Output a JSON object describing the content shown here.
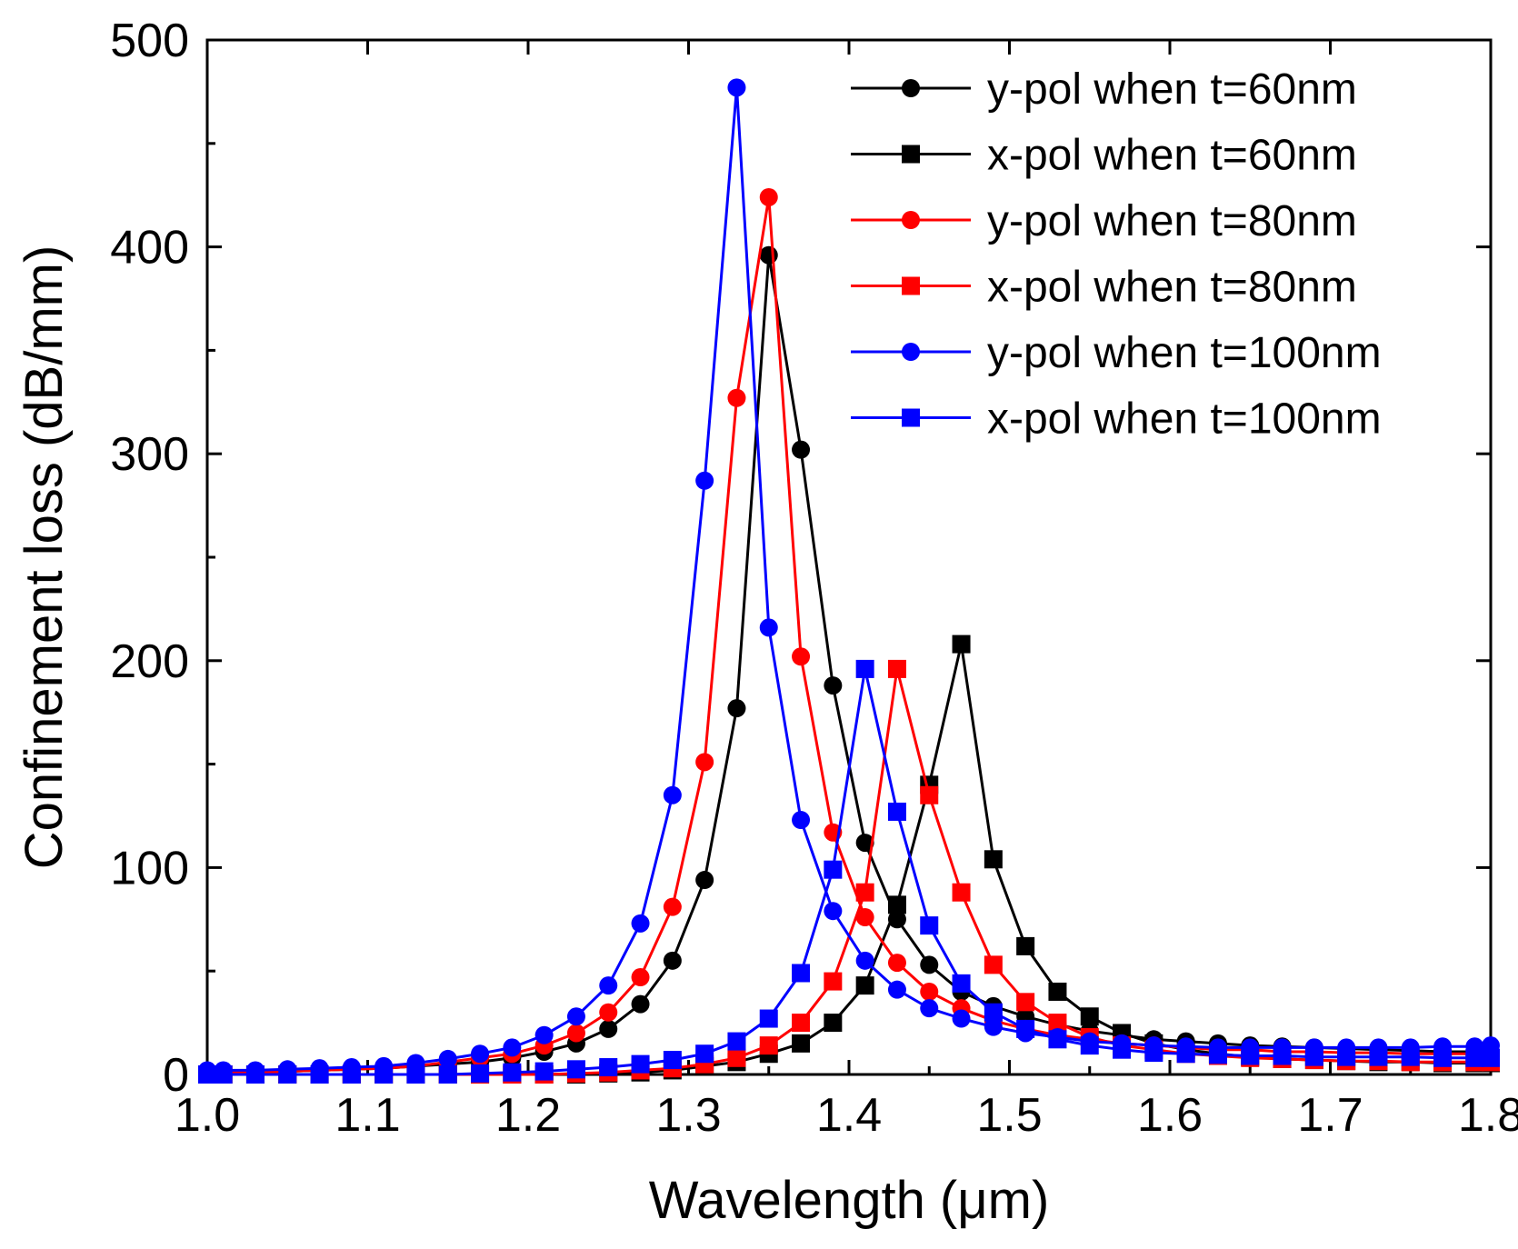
{
  "chart_data": {
    "type": "line",
    "title": "",
    "xlabel": "Wavelength (μm)",
    "ylabel": "Confinement loss (dB/mm)",
    "xlim": [
      1.0,
      1.8
    ],
    "ylim": [
      0,
      500
    ],
    "xticks": [
      "1.0",
      "1.1",
      "1.2",
      "1.3",
      "1.4",
      "1.5",
      "1.6",
      "1.7",
      "1.8"
    ],
    "yticks": [
      "0",
      "100",
      "200",
      "300",
      "400",
      "500"
    ],
    "grid": false,
    "legend_position": "top-right",
    "x": [
      1.0,
      1.01,
      1.03,
      1.05,
      1.07,
      1.09,
      1.11,
      1.13,
      1.15,
      1.17,
      1.19,
      1.21,
      1.23,
      1.25,
      1.27,
      1.29,
      1.31,
      1.33,
      1.35,
      1.37,
      1.39,
      1.41,
      1.43,
      1.45,
      1.47,
      1.49,
      1.51,
      1.53,
      1.55,
      1.57,
      1.59,
      1.61,
      1.63,
      1.65,
      1.67,
      1.69,
      1.71,
      1.73,
      1.75,
      1.77,
      1.79,
      1.8
    ],
    "series": [
      {
        "name": "y-pol when t=60nm",
        "color": "#000000",
        "marker": "circle",
        "values": [
          1,
          1,
          1,
          1.5,
          2,
          2.5,
          3,
          4,
          5,
          6,
          8,
          11,
          15,
          22,
          34,
          55,
          94,
          177,
          396,
          302,
          188,
          112,
          75,
          53,
          40,
          33,
          28,
          24,
          21,
          19,
          17,
          16,
          15,
          14,
          13.5,
          13,
          12.5,
          12,
          11.5,
          11,
          11,
          11
        ]
      },
      {
        "name": "x-pol when t=60nm",
        "color": "#000000",
        "marker": "square",
        "values": [
          0,
          0,
          0,
          0,
          0,
          0,
          0,
          0,
          0,
          0,
          0,
          0,
          0,
          0.5,
          1,
          2,
          4,
          6,
          10,
          15,
          25,
          43,
          82,
          140,
          208,
          104,
          62,
          40,
          28,
          20,
          15,
          12,
          10,
          8.5,
          7.5,
          7,
          6.5,
          6,
          6,
          5.5,
          5.5,
          5.5
        ]
      },
      {
        "name": "y-pol when t=80nm",
        "color": "#ff0000",
        "marker": "circle",
        "values": [
          1,
          1,
          1,
          1.5,
          2,
          2.5,
          3,
          4,
          6,
          8,
          10,
          14,
          20,
          30,
          47,
          81,
          151,
          327,
          424,
          202,
          117,
          76,
          54,
          40,
          32,
          26,
          22,
          19,
          17,
          15,
          14,
          13,
          12,
          12,
          11,
          11,
          10.5,
          10.5,
          10,
          10,
          10,
          10
        ]
      },
      {
        "name": "x-pol when t=80nm",
        "color": "#ff0000",
        "marker": "square",
        "values": [
          0,
          0,
          0,
          0,
          0,
          0,
          0,
          0,
          0,
          0,
          0,
          0,
          0.5,
          1,
          2,
          3,
          5,
          8,
          14,
          25,
          45,
          88,
          196,
          135,
          88,
          53,
          35,
          25,
          18,
          14,
          12,
          10,
          9,
          8,
          7.5,
          7,
          6.5,
          6.5,
          6,
          6,
          6,
          6
        ]
      },
      {
        "name": "y-pol when t=100nm",
        "color": "#0000ff",
        "marker": "circle",
        "values": [
          2,
          2,
          2,
          2.5,
          3,
          3.5,
          4,
          5.5,
          7.5,
          10,
          13,
          19,
          28,
          43,
          73,
          135,
          287,
          477,
          216,
          123,
          79,
          55,
          41,
          32,
          27,
          23,
          20,
          18,
          16,
          15,
          14,
          13.5,
          13,
          13,
          13,
          13,
          13,
          13,
          13,
          13.5,
          13.5,
          14
        ]
      },
      {
        "name": "x-pol when t=100nm",
        "color": "#0000ff",
        "marker": "square",
        "values": [
          0,
          0,
          0,
          0,
          0,
          0,
          0,
          0,
          0,
          0.5,
          1,
          1.5,
          2.5,
          3.5,
          5,
          7,
          10,
          16,
          27,
          49,
          99,
          196,
          127,
          72,
          44,
          30,
          22,
          17,
          14,
          12,
          10.5,
          10,
          9.5,
          9,
          9,
          8.5,
          8.5,
          8.5,
          8.5,
          8,
          8,
          8
        ]
      }
    ]
  }
}
